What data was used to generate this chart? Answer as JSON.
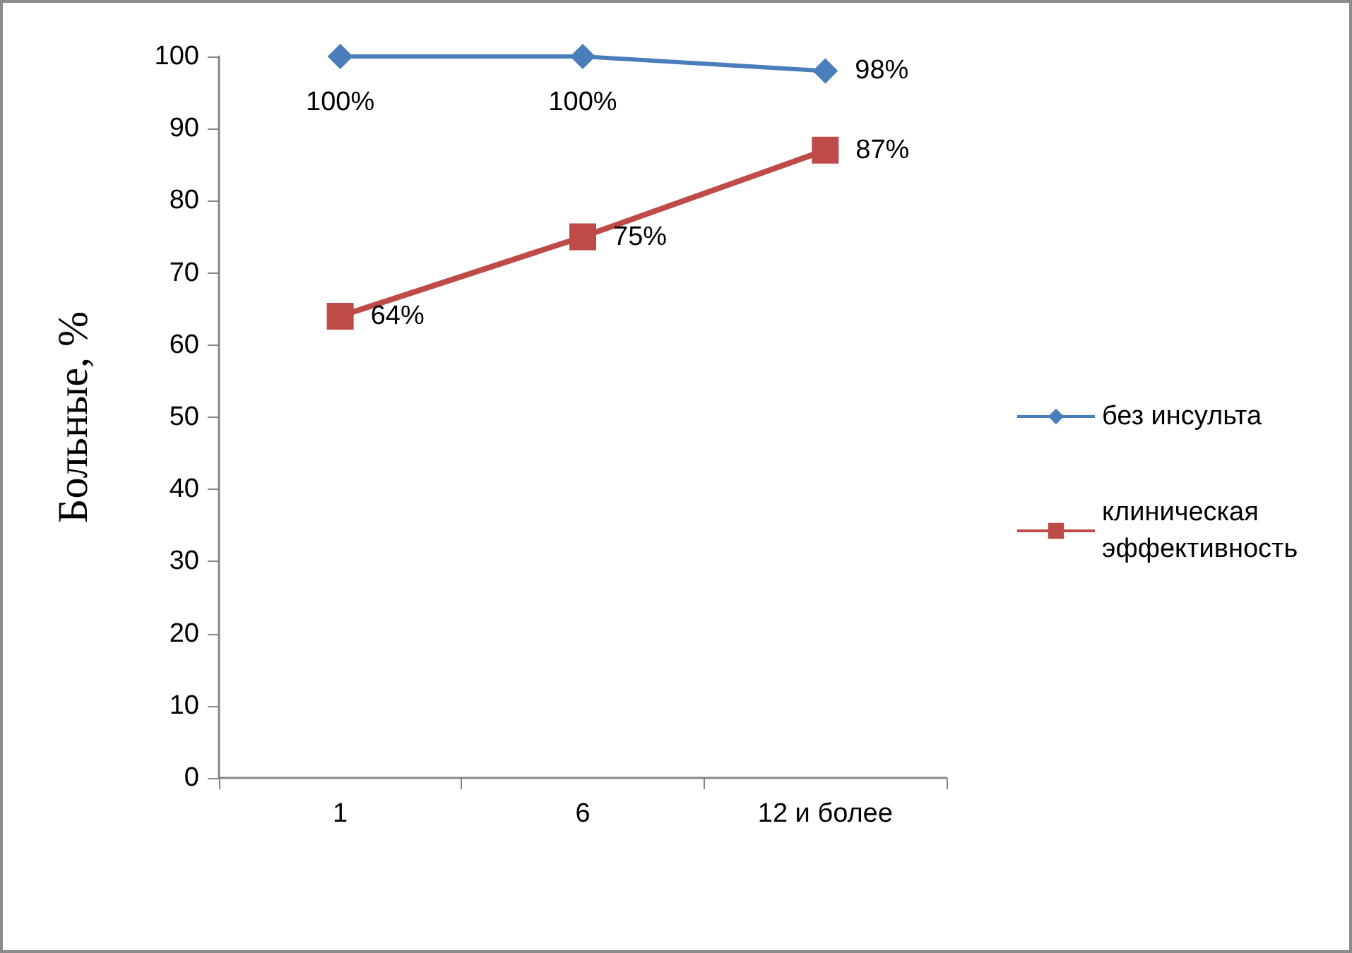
{
  "chart_data": {
    "type": "line",
    "ylabel": "Больные, %",
    "categories": [
      "1",
      "6",
      "12 и более"
    ],
    "series": [
      {
        "name": "без инсульта",
        "color": "#4a7ebb",
        "marker": "diamond",
        "values": [
          100,
          100,
          98
        ],
        "value_labels": [
          "100%",
          "100%",
          "98%"
        ]
      },
      {
        "name": "клиническая эффективность",
        "color": "#be4b48",
        "marker": "square",
        "values": [
          64,
          75,
          87
        ],
        "value_labels": [
          "64%",
          "75%",
          "87%"
        ]
      }
    ],
    "ylim": [
      0,
      100
    ],
    "yticks": [
      0,
      10,
      20,
      30,
      40,
      50,
      60,
      70,
      80,
      90,
      100
    ],
    "grid": false,
    "legend": "right",
    "line_style": "solid"
  }
}
